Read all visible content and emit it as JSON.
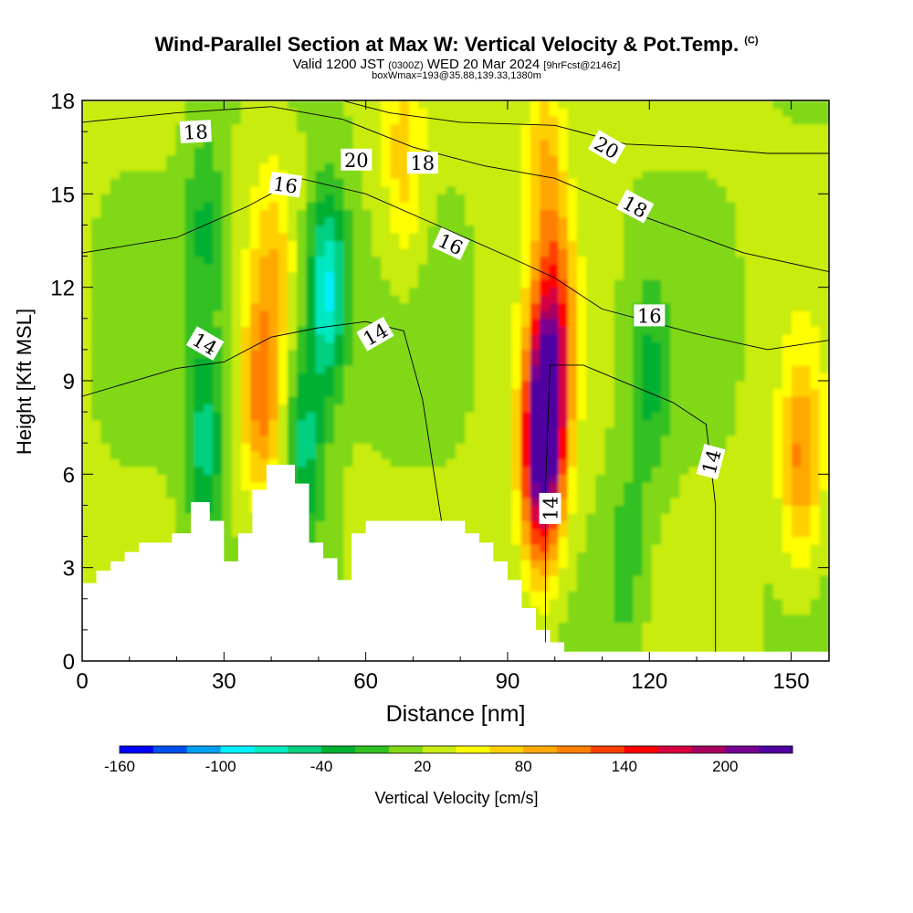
{
  "title_main": "Wind-Parallel Section at Max W: Vertical Velocity & Pot.Temp.",
  "title_copy": "(C)",
  "subtitle_a": "Valid 1200 JST",
  "subtitle_b": "(0300Z)",
  "subtitle_c": "WED 20 Mar 2024",
  "subtitle_d": "[9hrFcst@2146z]",
  "subtitle_line3": "boxWmax=193@35.88,139.33,1380m",
  "chart_data": {
    "type": "heatmap",
    "xlabel": "Distance [nm]",
    "ylabel": "Height [Kft MSL]",
    "xlim": [
      0,
      158
    ],
    "ylim": [
      0,
      18
    ],
    "x_ticks": [
      0,
      30,
      60,
      90,
      120,
      150
    ],
    "y_ticks": [
      0,
      3,
      6,
      9,
      12,
      15,
      18
    ],
    "colorbar": {
      "label": "Vertical Velocity [cm/s]",
      "tick_labels": [
        "-160",
        "-100",
        "-40",
        "20",
        "80",
        "140",
        "200"
      ],
      "tick_values": [
        -160,
        -100,
        -40,
        20,
        80,
        140,
        200
      ],
      "min": -160,
      "max": 240,
      "step": 20,
      "colors": [
        "#0000ff",
        "#0050f0",
        "#00a0f0",
        "#00f0ff",
        "#00e8c0",
        "#00d080",
        "#00b030",
        "#30c020",
        "#80d818",
        "#c8ec10",
        "#ffff00",
        "#ffd000",
        "#ffa800",
        "#ff8000",
        "#ff4000",
        "#ff0000",
        "#d80040",
        "#a80060",
        "#780090",
        "#5000a0"
      ]
    },
    "terrain_kft": [
      [
        0,
        2.5
      ],
      [
        3,
        2.9
      ],
      [
        6,
        3.2
      ],
      [
        9,
        3.5
      ],
      [
        12,
        3.8
      ],
      [
        19,
        4.1
      ],
      [
        23,
        5.1
      ],
      [
        27,
        4.5
      ],
      [
        30,
        3.2
      ],
      [
        33,
        4.1
      ],
      [
        36,
        5.5
      ],
      [
        39,
        6.3
      ],
      [
        45,
        5.7
      ],
      [
        48,
        3.8
      ],
      [
        51,
        3.3
      ],
      [
        54,
        2.6
      ],
      [
        57,
        4.1
      ],
      [
        60,
        4.5
      ],
      [
        78,
        4.5
      ],
      [
        81,
        4.1
      ],
      [
        84,
        3.8
      ],
      [
        87,
        3.2
      ],
      [
        90,
        2.6
      ],
      [
        93,
        1.7
      ],
      [
        96,
        1.0
      ],
      [
        99,
        0.6
      ],
      [
        102,
        0.3
      ],
      [
        105,
        0.3
      ],
      [
        158,
        0.3
      ]
    ],
    "w_features": [
      {
        "x": 98,
        "z": 8.0,
        "amp": 200
      },
      {
        "x": 97,
        "z": 5.5,
        "amp": 110
      },
      {
        "x": 100,
        "z": 11.0,
        "amp": 95
      },
      {
        "x": 38,
        "z": 8.5,
        "amp": 85
      },
      {
        "x": 40,
        "z": 13.0,
        "amp": 45
      },
      {
        "x": 152,
        "z": 6.5,
        "amp": 80
      },
      {
        "x": 68,
        "z": 16.0,
        "amp": 50
      },
      {
        "x": 98,
        "z": 16.0,
        "amp": 60
      },
      {
        "x": 52,
        "z": 12.0,
        "amp": -110
      },
      {
        "x": 47,
        "z": 7.0,
        "amp": -70
      },
      {
        "x": 26,
        "z": 7.0,
        "amp": -70
      },
      {
        "x": 26,
        "z": 14.0,
        "amp": -45
      },
      {
        "x": 120,
        "z": 9.0,
        "amp": -45
      },
      {
        "x": 115,
        "z": 3.0,
        "amp": -35
      }
    ],
    "theta_contours": [
      {
        "label": "14",
        "points": [
          [
            0,
            8.5
          ],
          [
            20,
            9.4
          ],
          [
            30,
            9.6
          ],
          [
            40,
            10.4
          ],
          [
            50,
            10.7
          ],
          [
            60,
            10.9
          ],
          [
            68,
            10.6
          ],
          [
            72,
            8.4
          ],
          [
            76,
            4.5
          ]
        ]
      },
      {
        "label": "14",
        "points": [
          [
            98,
            0.6
          ],
          [
            98,
            5.5
          ],
          [
            99,
            9.5
          ],
          [
            106,
            9.5
          ],
          [
            125,
            8.3
          ],
          [
            132,
            7.6
          ],
          [
            134,
            5.0
          ],
          [
            134,
            0.3
          ]
        ]
      },
      {
        "label": "16",
        "points": [
          [
            0,
            13.1
          ],
          [
            20,
            13.6
          ],
          [
            35,
            14.6
          ],
          [
            46,
            15.5
          ],
          [
            60,
            15.0
          ],
          [
            75,
            14.0
          ],
          [
            90,
            13.0
          ],
          [
            100,
            12.3
          ],
          [
            110,
            11.3
          ],
          [
            130,
            10.5
          ],
          [
            145,
            10.0
          ],
          [
            158,
            10.3
          ]
        ]
      },
      {
        "label": "18",
        "points": [
          [
            0,
            17.3
          ],
          [
            20,
            17.6
          ],
          [
            40,
            17.8
          ],
          [
            55,
            17.4
          ],
          [
            70,
            16.5
          ],
          [
            85,
            15.9
          ],
          [
            100,
            15.5
          ],
          [
            120,
            14.2
          ],
          [
            140,
            13.1
          ],
          [
            158,
            12.5
          ]
        ]
      },
      {
        "label": "20",
        "points": [
          [
            55,
            18.0
          ],
          [
            65,
            17.6
          ],
          [
            80,
            17.3
          ],
          [
            100,
            17.2
          ],
          [
            115,
            16.6
          ],
          [
            130,
            16.5
          ],
          [
            145,
            16.3
          ],
          [
            158,
            16.3
          ]
        ]
      }
    ],
    "contour_labels": [
      {
        "text": "18",
        "x": 24,
        "z": 17.0,
        "angle": -3
      },
      {
        "text": "20",
        "x": 58,
        "z": 16.1,
        "angle": 0
      },
      {
        "text": "18",
        "x": 72,
        "z": 16.0,
        "angle": 0
      },
      {
        "text": "16",
        "x": 43,
        "z": 15.3,
        "angle": 8
      },
      {
        "text": "16",
        "x": 78,
        "z": 13.4,
        "angle": 25
      },
      {
        "text": "20",
        "x": 111,
        "z": 16.5,
        "angle": 30
      },
      {
        "text": "18",
        "x": 117,
        "z": 14.6,
        "angle": 28
      },
      {
        "text": "14",
        "x": 26,
        "z": 10.2,
        "angle": 30
      },
      {
        "text": "14",
        "x": 62,
        "z": 10.5,
        "angle": -30
      },
      {
        "text": "16",
        "x": 120,
        "z": 11.1,
        "angle": 0
      },
      {
        "text": "14",
        "x": 133,
        "z": 6.4,
        "angle": -75
      },
      {
        "text": "14",
        "x": 99,
        "z": 4.9,
        "angle": -90
      }
    ]
  }
}
